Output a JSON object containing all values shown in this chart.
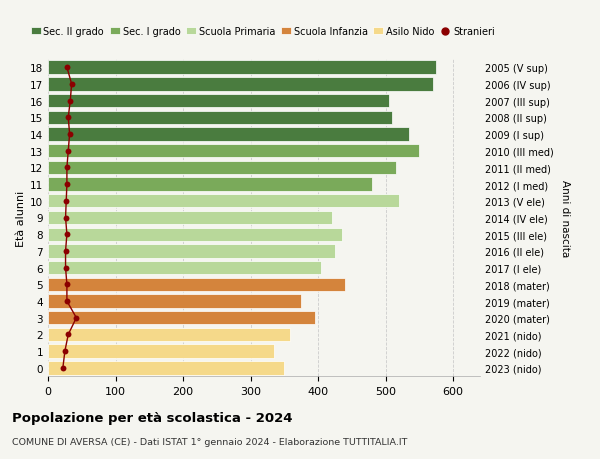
{
  "ages": [
    18,
    17,
    16,
    15,
    14,
    13,
    12,
    11,
    10,
    9,
    8,
    7,
    6,
    5,
    4,
    3,
    2,
    1,
    0
  ],
  "right_labels": [
    "2005 (V sup)",
    "2006 (IV sup)",
    "2007 (III sup)",
    "2008 (II sup)",
    "2009 (I sup)",
    "2010 (III med)",
    "2011 (II med)",
    "2012 (I med)",
    "2013 (V ele)",
    "2014 (IV ele)",
    "2015 (III ele)",
    "2016 (II ele)",
    "2017 (I ele)",
    "2018 (mater)",
    "2019 (mater)",
    "2020 (mater)",
    "2021 (nido)",
    "2022 (nido)",
    "2023 (nido)"
  ],
  "bar_values": [
    575,
    570,
    505,
    510,
    535,
    550,
    515,
    480,
    520,
    420,
    435,
    425,
    405,
    440,
    375,
    395,
    358,
    335,
    350
  ],
  "bar_colors": [
    "#4a7c3f",
    "#4a7c3f",
    "#4a7c3f",
    "#4a7c3f",
    "#4a7c3f",
    "#7aaa5a",
    "#7aaa5a",
    "#7aaa5a",
    "#b8d89a",
    "#b8d89a",
    "#b8d89a",
    "#b8d89a",
    "#b8d89a",
    "#d4843c",
    "#d4843c",
    "#d4843c",
    "#f5d98a",
    "#f5d98a",
    "#f5d98a"
  ],
  "stranieri_values": [
    28,
    35,
    33,
    30,
    32,
    30,
    28,
    28,
    27,
    26,
    28,
    26,
    26,
    28,
    28,
    42,
    30,
    25,
    22
  ],
  "stranieri_color": "#8b0000",
  "legend_labels": [
    "Sec. II grado",
    "Sec. I grado",
    "Scuola Primaria",
    "Scuola Infanzia",
    "Asilo Nido",
    "Stranieri"
  ],
  "legend_colors": [
    "#4a7c3f",
    "#7aaa5a",
    "#b8d89a",
    "#d4843c",
    "#f5d98a",
    "#8b0000"
  ],
  "ylabel_left": "Età alunni",
  "ylabel_right": "Anni di nascita",
  "title": "Popolazione per età scolastica - 2024",
  "subtitle": "COMUNE DI AVERSA (CE) - Dati ISTAT 1° gennaio 2024 - Elaborazione TUTTITALIA.IT",
  "xlim": [
    0,
    640
  ],
  "bg_color": "#f5f5f0",
  "grid_color": "#cccccc"
}
